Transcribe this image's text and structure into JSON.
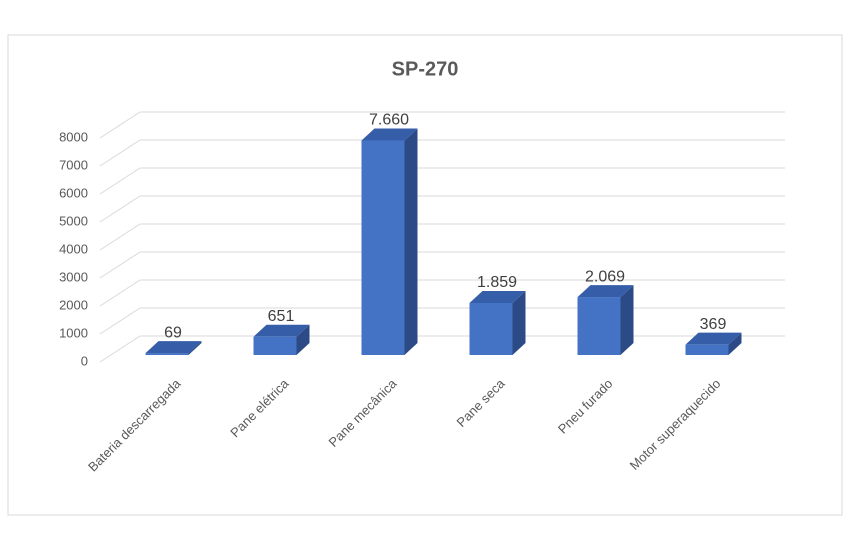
{
  "chart_data": {
    "type": "bar3d",
    "title": "SP-270",
    "categories": [
      "Bateria descarregada",
      "Pane elétrica",
      "Pane mecânica",
      "Pane seca",
      "Pneu furado",
      "Motor superaquecido"
    ],
    "values": [
      69,
      651,
      7660,
      1859,
      2069,
      369
    ],
    "value_labels": [
      "69",
      "651",
      "7.660",
      "1.859",
      "2.069",
      "369"
    ],
    "color": "#4472c4",
    "ylim": [
      0,
      8000
    ],
    "yticks": [
      0,
      1000,
      2000,
      3000,
      4000,
      5000,
      6000,
      7000,
      8000
    ],
    "grid": true
  }
}
